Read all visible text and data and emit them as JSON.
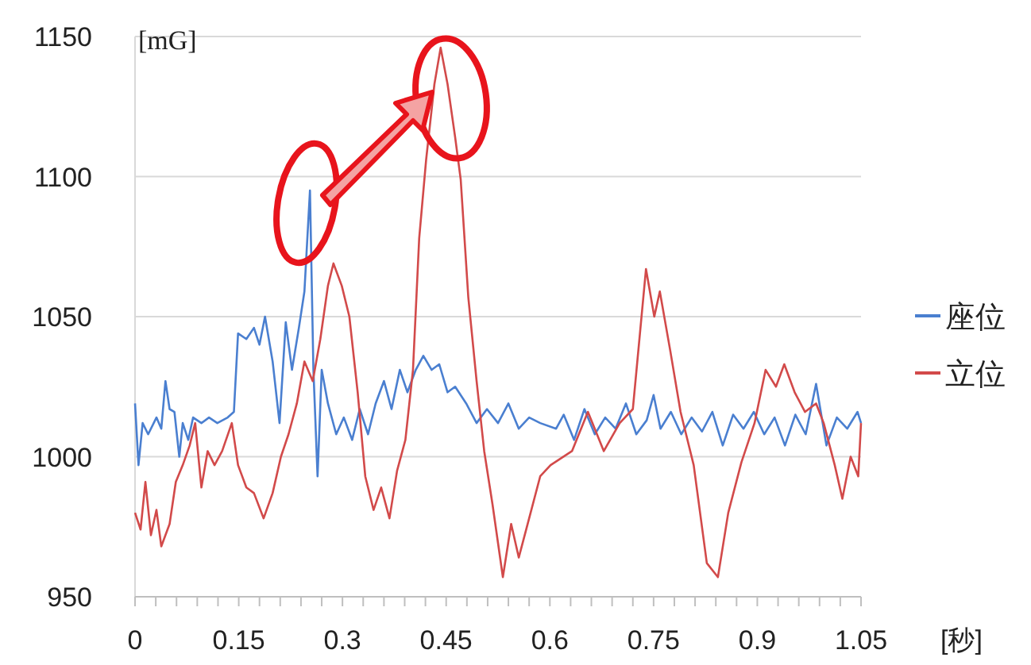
{
  "chart_data": {
    "type": "line",
    "ylabel": "[mG]",
    "xlabel": "[秒]",
    "xlim": [
      0,
      1.05
    ],
    "ylim": [
      950,
      1150
    ],
    "xticks": [
      0,
      {
        "value": 0.03,
        "label": null
      },
      {
        "value": 0.06,
        "label": null
      },
      {
        "value": 0.09,
        "label": null
      },
      {
        "value": 0.12,
        "label": null
      },
      0.15,
      {
        "value": 0.18,
        "label": null
      },
      {
        "value": 0.21,
        "label": null
      },
      {
        "value": 0.24,
        "label": null
      },
      {
        "value": 0.27,
        "label": null
      },
      0.3,
      {
        "value": 0.33,
        "label": null
      },
      {
        "value": 0.36,
        "label": null
      },
      {
        "value": 0.39,
        "label": null
      },
      {
        "value": 0.42,
        "label": null
      },
      0.45,
      {
        "value": 0.48,
        "label": null
      },
      {
        "value": 0.51,
        "label": null
      },
      {
        "value": 0.54,
        "label": null
      },
      {
        "value": 0.57,
        "label": null
      },
      0.6,
      {
        "value": 0.63,
        "label": null
      },
      {
        "value": 0.66,
        "label": null
      },
      {
        "value": 0.69,
        "label": null
      },
      {
        "value": 0.72,
        "label": null
      },
      0.75,
      {
        "value": 0.78,
        "label": null
      },
      {
        "value": 0.81,
        "label": null
      },
      {
        "value": 0.84,
        "label": null
      },
      {
        "value": 0.87,
        "label": null
      },
      0.9,
      {
        "value": 0.93,
        "label": null
      },
      {
        "value": 0.96,
        "label": null
      },
      {
        "value": 0.99,
        "label": null
      },
      {
        "value": 1.02,
        "label": null
      },
      1.05
    ],
    "yticks": [
      950,
      1000,
      1050,
      1100,
      1150
    ],
    "grid": "y",
    "legend": "right",
    "marker": "none",
    "line_style": "solid",
    "series": [
      {
        "name": "座位",
        "color": "#4a7fd0",
        "x": [
          0,
          0.005,
          0.011,
          0.019,
          0.031,
          0.038,
          0.044,
          0.05,
          0.057,
          0.064,
          0.069,
          0.077,
          0.084,
          0.096,
          0.107,
          0.119,
          0.134,
          0.143,
          0.149,
          0.161,
          0.172,
          0.18,
          0.188,
          0.199,
          0.209,
          0.218,
          0.227,
          0.237,
          0.245,
          0.253,
          0.258,
          0.264,
          0.27,
          0.279,
          0.291,
          0.302,
          0.314,
          0.325,
          0.337,
          0.348,
          0.36,
          0.371,
          0.383,
          0.394,
          0.406,
          0.417,
          0.429,
          0.44,
          0.452,
          0.463,
          0.479,
          0.494,
          0.509,
          0.525,
          0.54,
          0.555,
          0.57,
          0.586,
          0.609,
          0.62,
          0.635,
          0.65,
          0.665,
          0.68,
          0.695,
          0.71,
          0.725,
          0.74,
          0.75,
          0.76,
          0.775,
          0.79,
          0.805,
          0.82,
          0.835,
          0.85,
          0.865,
          0.88,
          0.895,
          0.91,
          0.925,
          0.94,
          0.955,
          0.97,
          0.985,
          1.0,
          1.015,
          1.03,
          1.045,
          1.05
        ],
        "values": [
          1019,
          997,
          1012,
          1008,
          1014,
          1010,
          1027,
          1017,
          1016,
          1000,
          1012,
          1006,
          1014,
          1012,
          1014,
          1012,
          1014,
          1016,
          1044,
          1042,
          1046,
          1040,
          1050,
          1034,
          1012,
          1048,
          1031,
          1046,
          1059,
          1095,
          1031,
          993,
          1031,
          1019,
          1008,
          1014,
          1006,
          1017,
          1008,
          1019,
          1027,
          1017,
          1031,
          1023,
          1031,
          1036,
          1031,
          1033,
          1023,
          1025,
          1019,
          1012,
          1017,
          1012,
          1019,
          1010,
          1014,
          1012,
          1010,
          1015,
          1006,
          1017,
          1008,
          1014,
          1010,
          1019,
          1008,
          1013,
          1022,
          1010,
          1016,
          1008,
          1014,
          1009,
          1016,
          1004,
          1015,
          1010,
          1016,
          1008,
          1014,
          1004,
          1015,
          1008,
          1026,
          1004,
          1014,
          1010,
          1016,
          1012
        ]
      },
      {
        "name": "立位",
        "color": "#d24a4a",
        "x": [
          0,
          0.008,
          0.015,
          0.023,
          0.031,
          0.038,
          0.05,
          0.059,
          0.069,
          0.079,
          0.087,
          0.096,
          0.105,
          0.115,
          0.126,
          0.14,
          0.149,
          0.161,
          0.172,
          0.186,
          0.199,
          0.211,
          0.222,
          0.234,
          0.245,
          0.257,
          0.268,
          0.279,
          0.287,
          0.299,
          0.31,
          0.322,
          0.333,
          0.345,
          0.356,
          0.368,
          0.379,
          0.391,
          0.402,
          0.411,
          0.421,
          0.433,
          0.442,
          0.452,
          0.463,
          0.471,
          0.482,
          0.494,
          0.505,
          0.517,
          0.532,
          0.544,
          0.555,
          0.57,
          0.586,
          0.601,
          0.632,
          0.655,
          0.678,
          0.701,
          0.72,
          0.739,
          0.751,
          0.759,
          0.774,
          0.789,
          0.808,
          0.827,
          0.843,
          0.858,
          0.877,
          0.896,
          0.912,
          0.927,
          0.939,
          0.954,
          0.969,
          0.985,
          0.996,
          1.012,
          1.023,
          1.035,
          1.046,
          1.05
        ],
        "values": [
          980,
          974,
          991,
          972,
          981,
          968,
          976,
          991,
          997,
          1004,
          1012,
          989,
          1002,
          997,
          1002,
          1012,
          997,
          989,
          987,
          978,
          987,
          1000,
          1008,
          1019,
          1034,
          1027,
          1042,
          1061,
          1069,
          1061,
          1050,
          1023,
          993,
          981,
          989,
          978,
          995,
          1006,
          1031,
          1078,
          1106,
          1133,
          1146,
          1133,
          1114,
          1099,
          1057,
          1027,
          1002,
          983,
          957,
          976,
          964,
          978,
          993,
          997,
          1002,
          1016,
          1002,
          1012,
          1017,
          1067,
          1050,
          1059,
          1038,
          1016,
          997,
          962,
          957,
          980,
          998,
          1012,
          1031,
          1025,
          1033,
          1023,
          1016,
          1019,
          1012,
          997,
          985,
          1000,
          993,
          1012
        ]
      }
    ]
  }
}
